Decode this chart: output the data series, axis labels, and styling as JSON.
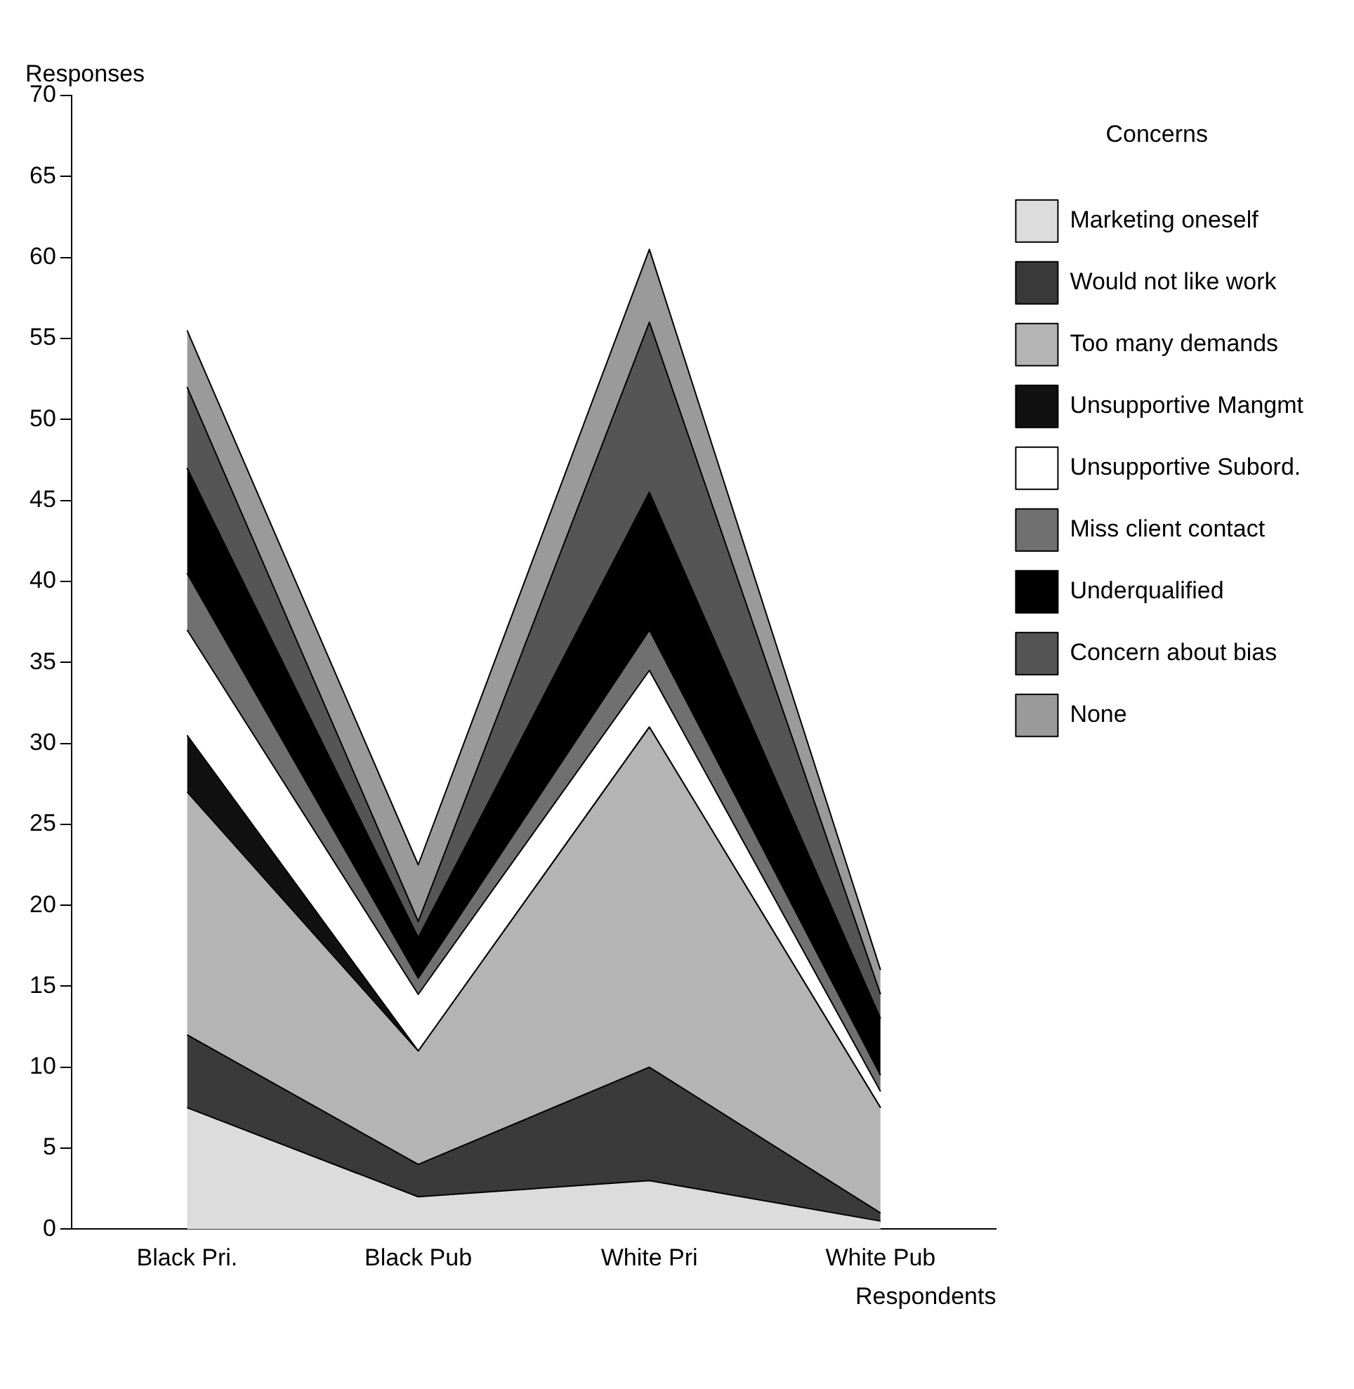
{
  "chart_data": {
    "type": "area",
    "stacked": true,
    "xlabel": "Respondents",
    "ylabel": "Responses",
    "legend_title": "Concerns",
    "legend": "right",
    "grid": false,
    "categories": [
      "Black Pri.",
      "Black Pub",
      "White Pri",
      "White Pub"
    ],
    "ylim": [
      0,
      70
    ],
    "yticks": [
      0,
      5,
      10,
      15,
      20,
      25,
      30,
      35,
      40,
      45,
      50,
      55,
      60,
      65,
      70
    ],
    "series": [
      {
        "name": "Marketing oneself",
        "color": "#dcdcdc",
        "values": [
          7.5,
          2,
          3,
          0.5
        ]
      },
      {
        "name": "Would not like work",
        "color": "#3a3a3a",
        "values": [
          4.5,
          2,
          7,
          0.5
        ]
      },
      {
        "name": "Too many demands",
        "color": "#b4b4b4",
        "values": [
          15,
          7,
          21,
          6.5
        ]
      },
      {
        "name": "Unsupportive Mangmt",
        "color": "#111111",
        "values": [
          3.5,
          0,
          0,
          0
        ]
      },
      {
        "name": "Unsupportive Subord.",
        "color": "#ffffff",
        "values": [
          6.5,
          3.5,
          3.5,
          1
        ]
      },
      {
        "name": "Miss client contact",
        "color": "#707070",
        "values": [
          3.5,
          1,
          2.5,
          1
        ]
      },
      {
        "name": "Underqualified",
        "color": "#000000",
        "values": [
          6.5,
          2.5,
          8.5,
          3.5
        ]
      },
      {
        "name": "Concern about bias",
        "color": "#555555",
        "values": [
          5,
          1,
          10.5,
          1.5
        ]
      },
      {
        "name": "None",
        "color": "#9a9a9a",
        "values": [
          3.5,
          3.5,
          4.5,
          1.5
        ]
      }
    ]
  }
}
